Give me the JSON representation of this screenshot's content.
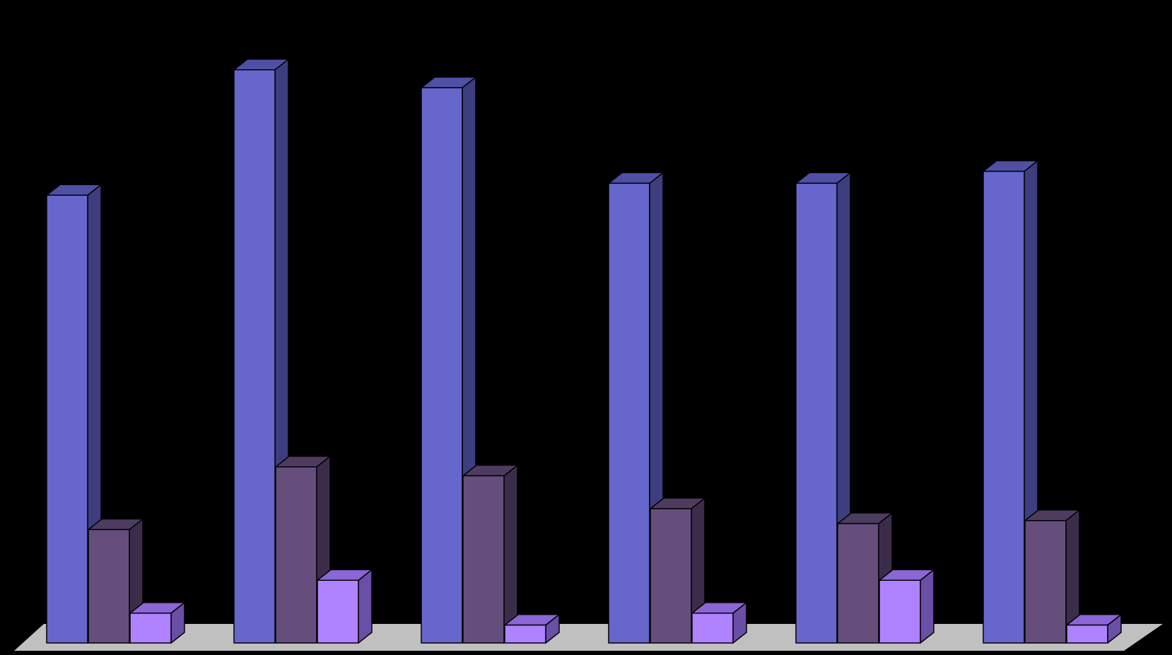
{
  "chart_data": {
    "type": "bar",
    "style": "3d-clustered-column",
    "background": "#000000",
    "floor_color": "#c0c0c0",
    "title": "",
    "xlabel": "",
    "ylabel": "",
    "categories": [
      "",
      "",
      "",
      "",
      "",
      ""
    ],
    "ylim": [
      0,
      100
    ],
    "grid": false,
    "legend": "none",
    "series": [
      {
        "front_color": "#6666cc",
        "side_color": "#3d3d80",
        "top_color": "#4f4fa6",
        "values": [
          75,
          96,
          93,
          77,
          77,
          79
        ]
      },
      {
        "front_color": "#654e7c",
        "side_color": "#3b2d4a",
        "top_color": "#4d3c60",
        "values": [
          19,
          29.5,
          28,
          22.5,
          20,
          20.5
        ]
      },
      {
        "front_color": "#af82ff",
        "side_color": "#6a4fa6",
        "top_color": "#8a66d6",
        "values": [
          5,
          10.5,
          3,
          5,
          10.5,
          3
        ]
      }
    ]
  }
}
